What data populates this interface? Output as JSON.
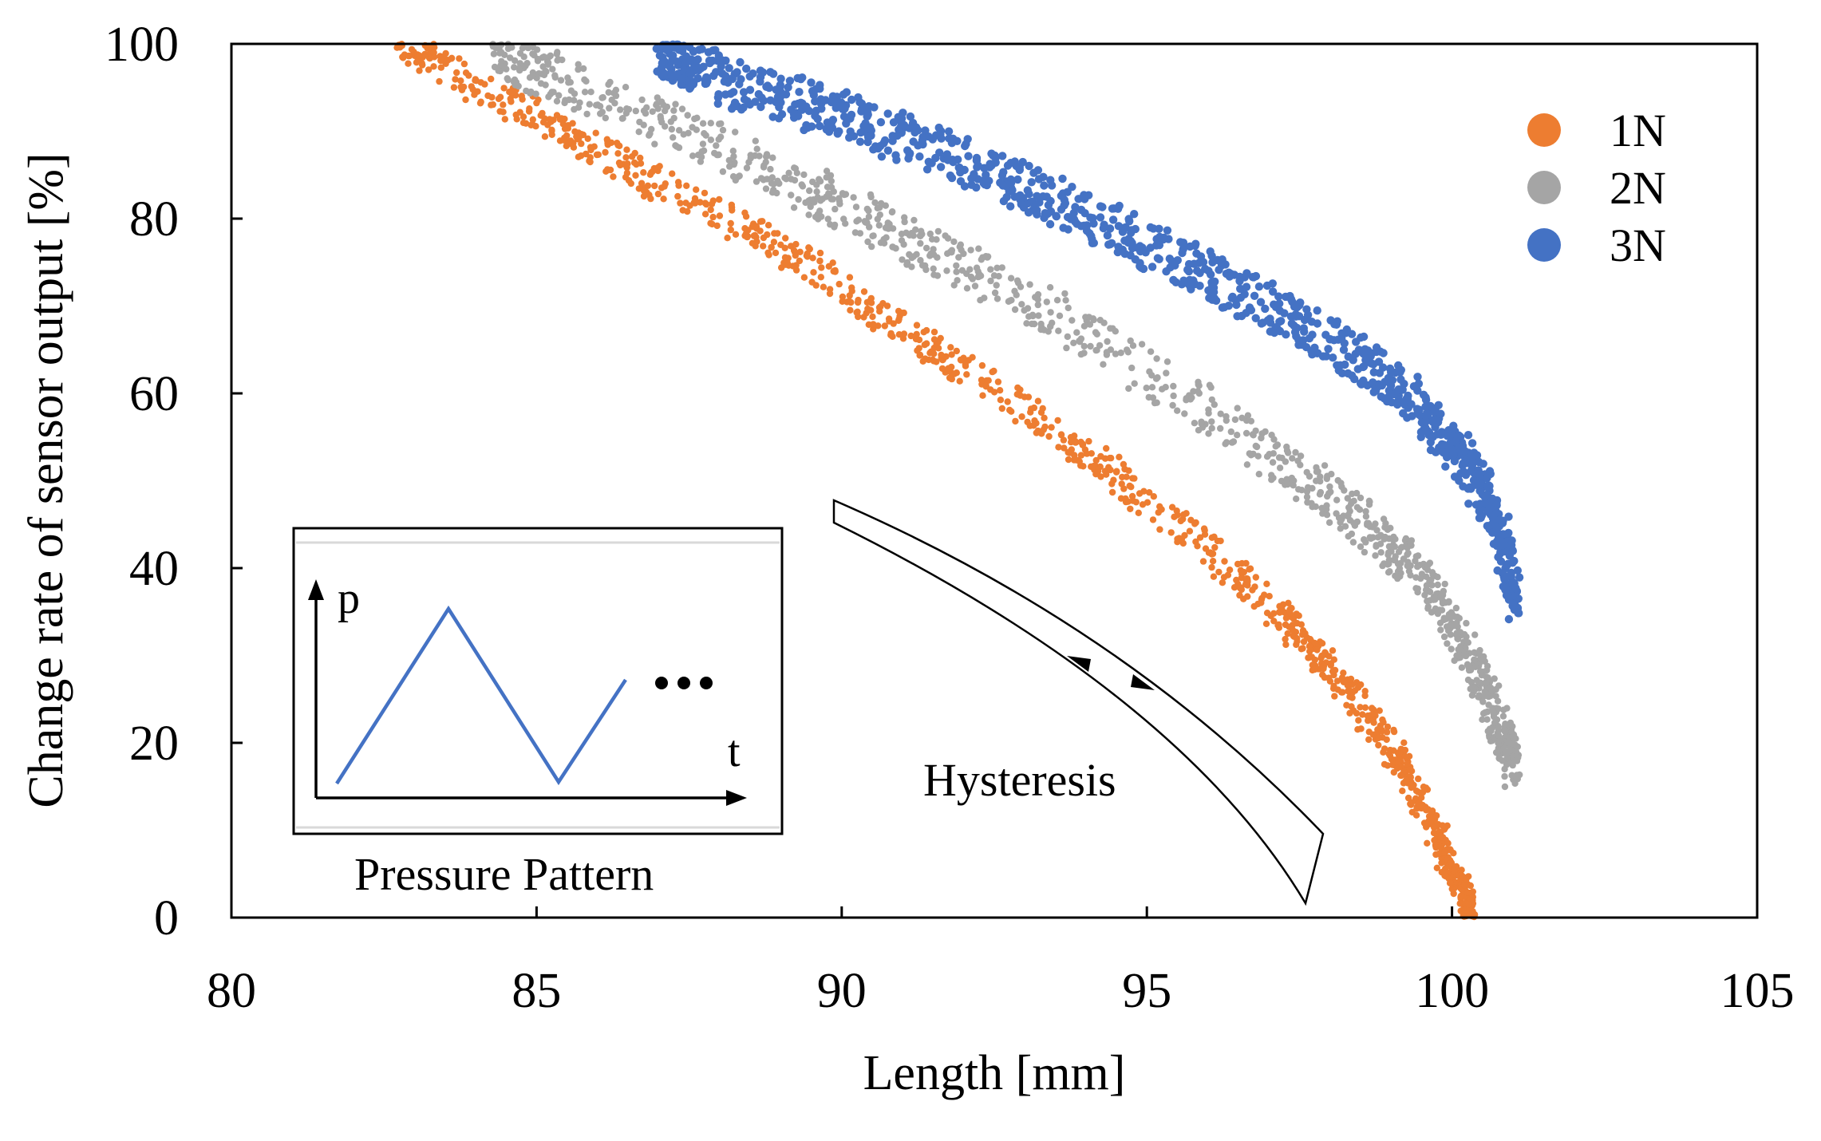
{
  "chart_data": {
    "type": "scatter",
    "title": "",
    "xlabel": "Length [mm]",
    "ylabel": "Change rate of sensor output [%]",
    "xlim": [
      80,
      105
    ],
    "ylim": [
      0,
      100
    ],
    "xticks": [
      80,
      85,
      90,
      95,
      100,
      105
    ],
    "yticks": [
      0,
      20,
      40,
      60,
      80,
      100
    ],
    "legend_position": "top-right",
    "series": [
      {
        "name": "1N",
        "color": "#ED7D31",
        "band_width": 1.8,
        "x": [
          82.8,
          83.5,
          84.5,
          85.5,
          86.5,
          87.5,
          88.5,
          89.5,
          90.5,
          91.5,
          92.5,
          93.5,
          94.5,
          95.5,
          96.5,
          97.2,
          97.8,
          98.3,
          98.8,
          99.2,
          99.5,
          99.8,
          100.0,
          100.2,
          100.3
        ],
        "y": [
          100,
          97,
          93.5,
          89.5,
          86,
          82,
          78.5,
          74.5,
          70,
          65,
          60.5,
          55.5,
          50.5,
          45,
          39,
          34.5,
          30,
          26,
          21.5,
          17,
          13,
          9,
          5.5,
          2.5,
          0.5
        ]
      },
      {
        "name": "2N",
        "color": "#A5A5A5",
        "band_width": 2.6,
        "x": [
          84.3,
          85.0,
          86.0,
          87.0,
          88.0,
          89.0,
          90.0,
          91.0,
          92.0,
          93.0,
          94.0,
          95.0,
          96.0,
          97.0,
          97.8,
          98.5,
          99.0,
          99.5,
          99.9,
          100.2,
          100.5,
          100.7,
          100.9,
          101.0
        ],
        "y": [
          99,
          97,
          94,
          91,
          88,
          85,
          81.5,
          78,
          74.5,
          71,
          67,
          62.5,
          58,
          53,
          49,
          45.5,
          42,
          39,
          35,
          31,
          27,
          23.5,
          20,
          17
        ]
      },
      {
        "name": "3N",
        "color": "#4472C4",
        "band_width": 2.6,
        "x": [
          87.0,
          87.5,
          88.0,
          89.0,
          90.0,
          91.0,
          92.0,
          93.0,
          94.0,
          95.0,
          96.0,
          97.0,
          98.0,
          98.8,
          99.5,
          100.0,
          100.4,
          100.7,
          100.9,
          101.0
        ],
        "y": [
          99,
          97.5,
          96,
          94,
          92,
          89,
          86.5,
          83.5,
          80.5,
          77,
          73.5,
          70,
          66,
          62.5,
          58,
          54,
          50,
          46,
          41,
          36
        ]
      }
    ],
    "annotations": {
      "hysteresis": "Hysteresis",
      "pressure_pattern": "Pressure Pattern",
      "inset_axis_p": "p",
      "inset_axis_t": "t",
      "inset_ellipsis": "•••"
    }
  }
}
